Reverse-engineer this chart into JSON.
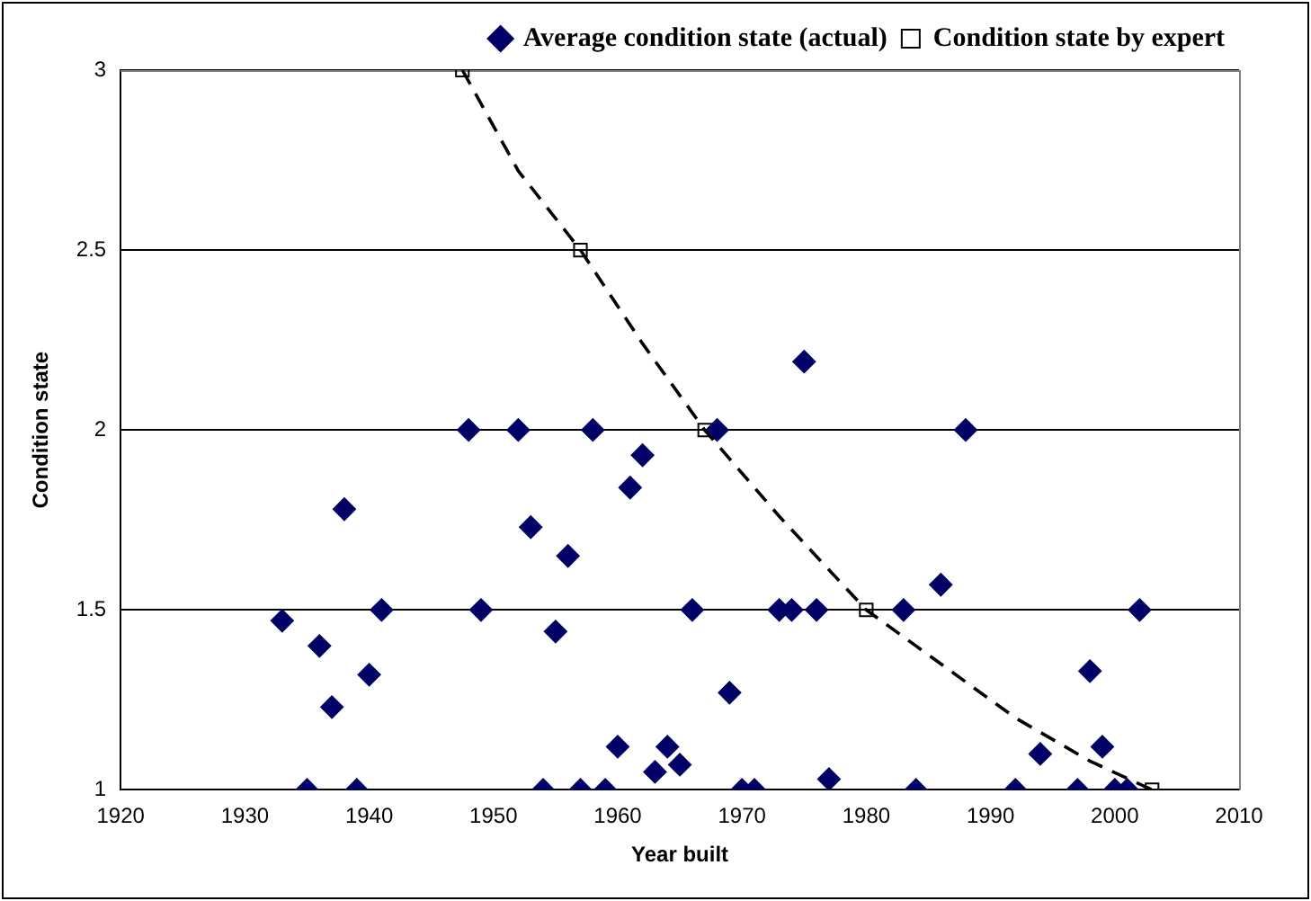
{
  "chart_data": {
    "type": "scatter",
    "xlabel": "Year built",
    "ylabel": "Condition state",
    "xlim": [
      1920,
      2010
    ],
    "xticks": [
      1920,
      1930,
      1940,
      1950,
      1960,
      1970,
      1980,
      1990,
      2000,
      2010
    ],
    "ylim": [
      1,
      3
    ],
    "yticks": [
      1,
      1.5,
      2,
      2.5,
      3
    ],
    "grid": "y",
    "legend": "top right",
    "series": [
      {
        "name": "Average condition state (actual)",
        "marker": "diamond",
        "color": "#000066",
        "x": [
          1933,
          1935,
          1936,
          1937,
          1938,
          1939,
          1940,
          1941,
          1948,
          1949,
          1952,
          1953,
          1954,
          1955,
          1956,
          1957,
          1958,
          1959,
          1960,
          1961,
          1962,
          1963,
          1964,
          1965,
          1966,
          1968,
          1969,
          1970,
          1971,
          1973,
          1974,
          1975,
          1976,
          1977,
          1983,
          1984,
          1986,
          1988,
          1992,
          1994,
          1997,
          1998,
          1999,
          2000,
          2001,
          2002
        ],
        "values": [
          1.47,
          1,
          1.4,
          1.23,
          1.78,
          1,
          1.32,
          1.5,
          2,
          1.5,
          2,
          1.73,
          1,
          1.44,
          1.65,
          1,
          2,
          1,
          1.12,
          1.84,
          1.93,
          1.05,
          1.12,
          1.07,
          1.5,
          2,
          1.27,
          1,
          1,
          1.5,
          1.5,
          2.19,
          1.5,
          1.03,
          1.5,
          1,
          1.57,
          2,
          1,
          1.1,
          1,
          1.33,
          1.12,
          1,
          1,
          1.5
        ]
      },
      {
        "name": "Condition state by expert",
        "marker": "square",
        "color": "#000000",
        "x": [
          1947.5,
          1957,
          1967,
          1980,
          2003
        ],
        "values": [
          3,
          2.5,
          2,
          1.5,
          1
        ]
      },
      {
        "type": "line",
        "marker": "none",
        "line_style": "dashed",
        "color": "#000000",
        "x": [
          1947.5,
          1952,
          1957,
          1962,
          1967,
          1973,
          1980,
          1986,
          1992,
          1998,
          2003
        ],
        "values": [
          3,
          2.72,
          2.5,
          2.24,
          2,
          1.76,
          1.5,
          1.35,
          1.2,
          1.08,
          1
        ]
      }
    ]
  }
}
